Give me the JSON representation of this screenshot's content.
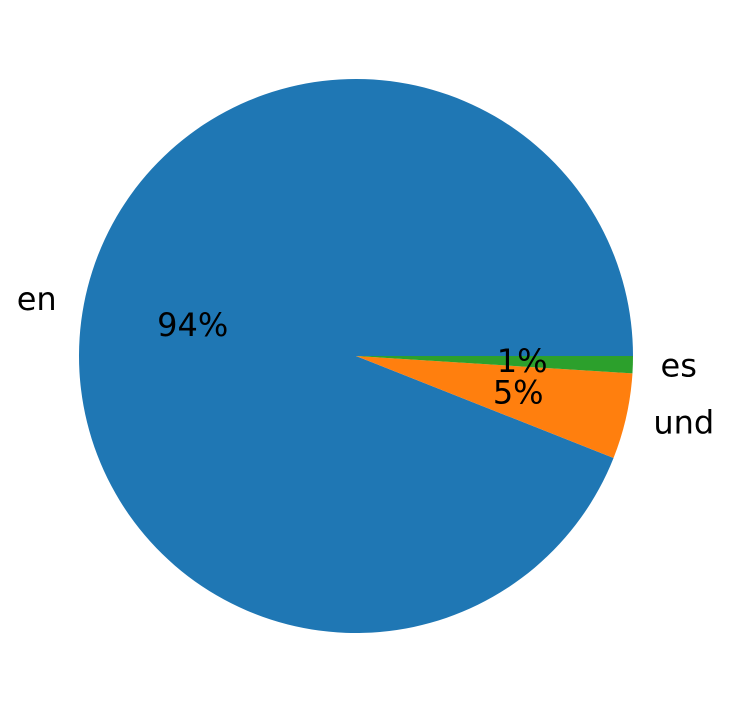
{
  "chart_data": {
    "type": "pie",
    "title": "",
    "start_angle_deg": 0,
    "direction": "counterclockwise",
    "slices": [
      {
        "label": "en",
        "value": 94,
        "pct_label": "94%",
        "color": "#1f77b4"
      },
      {
        "label": "und",
        "value": 5,
        "pct_label": "5%",
        "color": "#ff7f0e"
      },
      {
        "label": "es",
        "value": 1,
        "pct_label": "1%",
        "color": "#2ca02c"
      }
    ]
  }
}
